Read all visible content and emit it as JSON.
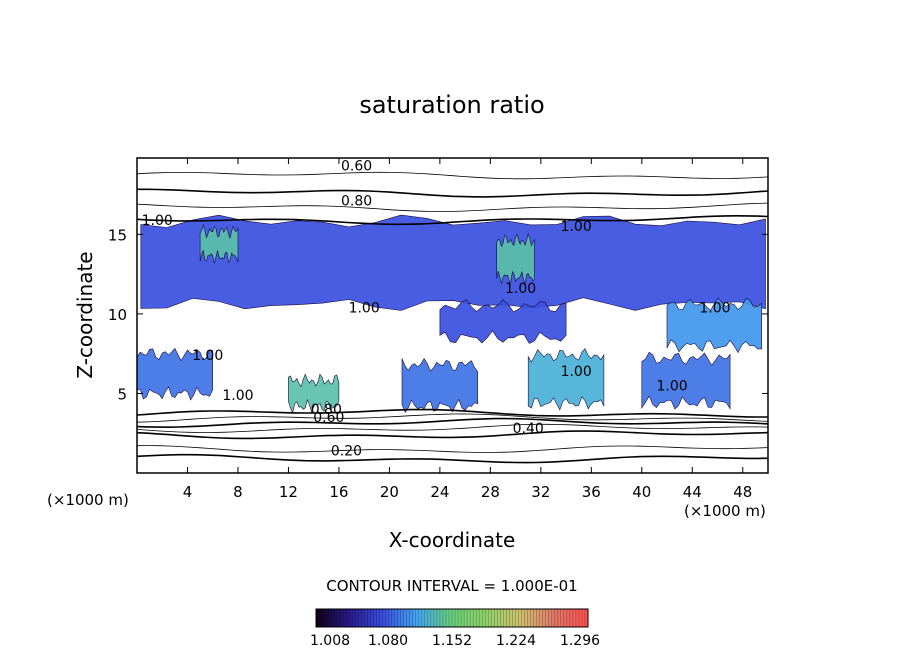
{
  "chart_data": {
    "type": "heatmap",
    "title": "saturation ratio",
    "xlabel": "X-coordinate",
    "ylabel": "Z-coordinate",
    "x_unit_left": "(×1000 m)",
    "x_unit_right": "(×1000 m)",
    "xlim": [
      0,
      50
    ],
    "ylim": [
      0,
      19.8
    ],
    "x_ticks": [
      4,
      8,
      12,
      16,
      20,
      24,
      28,
      32,
      36,
      40,
      44,
      48
    ],
    "y_ticks": [
      5,
      10,
      15
    ],
    "contour_interval_text": "CONTOUR INTERVAL = 1.000E-01",
    "colorbar": {
      "ticks": [
        "1.008",
        "1.080",
        "1.152",
        "1.224",
        "1.296"
      ],
      "colors": [
        "#100018",
        "#2a1a8c",
        "#3a4fe0",
        "#43a8f0",
        "#6ad07a",
        "#8fd36a",
        "#d0c070",
        "#e07868",
        "#ff5050"
      ]
    },
    "contour_labels": [
      {
        "text": "0.60",
        "x": 17.4,
        "y": 19.0
      },
      {
        "text": "0.80",
        "x": 17.4,
        "y": 16.8
      },
      {
        "text": "1.00",
        "x": 1.6,
        "y": 15.6
      },
      {
        "text": "1.00",
        "x": 34.8,
        "y": 15.2
      },
      {
        "text": "1.00",
        "x": 30.4,
        "y": 11.3
      },
      {
        "text": "1.00",
        "x": 18.0,
        "y": 10.1
      },
      {
        "text": "1.00",
        "x": 45.8,
        "y": 10.1
      },
      {
        "text": "1.00",
        "x": 5.6,
        "y": 7.1
      },
      {
        "text": "1.00",
        "x": 34.8,
        "y": 6.1
      },
      {
        "text": "1.00",
        "x": 42.4,
        "y": 5.2
      },
      {
        "text": "1.00",
        "x": 8.0,
        "y": 4.6
      },
      {
        "text": "0.80",
        "x": 15.0,
        "y": 3.7
      },
      {
        "text": "0.60",
        "x": 15.2,
        "y": 3.2
      },
      {
        "text": "0.40",
        "x": 31.0,
        "y": 2.5
      },
      {
        "text": "0.20",
        "x": 16.6,
        "y": 1.1
      }
    ],
    "isolines": [
      {
        "level": "0.20",
        "z": 0.9
      },
      {
        "level": "0.30",
        "z": 1.5
      },
      {
        "level": "0.40",
        "z": 2.4
      },
      {
        "level": "0.50",
        "z": 2.8
      },
      {
        "level": "0.60",
        "z": 3.15
      },
      {
        "level": "0.70",
        "z": 3.45
      },
      {
        "level": "0.80",
        "z": 3.75
      },
      {
        "level": "0.60",
        "z": 18.7
      },
      {
        "level": "0.70",
        "z": 17.6
      },
      {
        "level": "0.80",
        "z": 16.7
      },
      {
        "level": "0.90",
        "z": 15.9
      }
    ],
    "supersaturated_regions": [
      {
        "x0": 0.3,
        "x1": 49.8,
        "z0": 10.6,
        "z1": 15.8,
        "level": 0.25
      },
      {
        "x0": 5.0,
        "x1": 8.0,
        "z0": 13.6,
        "z1": 15.2,
        "level": 0.45
      },
      {
        "x0": 28.5,
        "x1": 31.5,
        "z0": 12.3,
        "z1": 14.6,
        "level": 0.45
      },
      {
        "x0": 0.0,
        "x1": 6.0,
        "z0": 5.0,
        "z1": 7.5,
        "level": 0.3
      },
      {
        "x0": 12.0,
        "x1": 16.0,
        "z0": 4.2,
        "z1": 5.8,
        "level": 0.45
      },
      {
        "x0": 21.0,
        "x1": 27.0,
        "z0": 4.2,
        "z1": 6.8,
        "level": 0.3
      },
      {
        "x0": 31.0,
        "x1": 37.0,
        "z0": 4.4,
        "z1": 7.4,
        "level": 0.4
      },
      {
        "x0": 40.0,
        "x1": 47.0,
        "z0": 4.4,
        "z1": 7.2,
        "level": 0.3
      },
      {
        "x0": 42.0,
        "x1": 49.5,
        "z0": 8.0,
        "z1": 10.6,
        "level": 0.35
      },
      {
        "x0": 24.0,
        "x1": 34.0,
        "z0": 8.5,
        "z1": 10.5,
        "level": 0.25
      }
    ]
  }
}
